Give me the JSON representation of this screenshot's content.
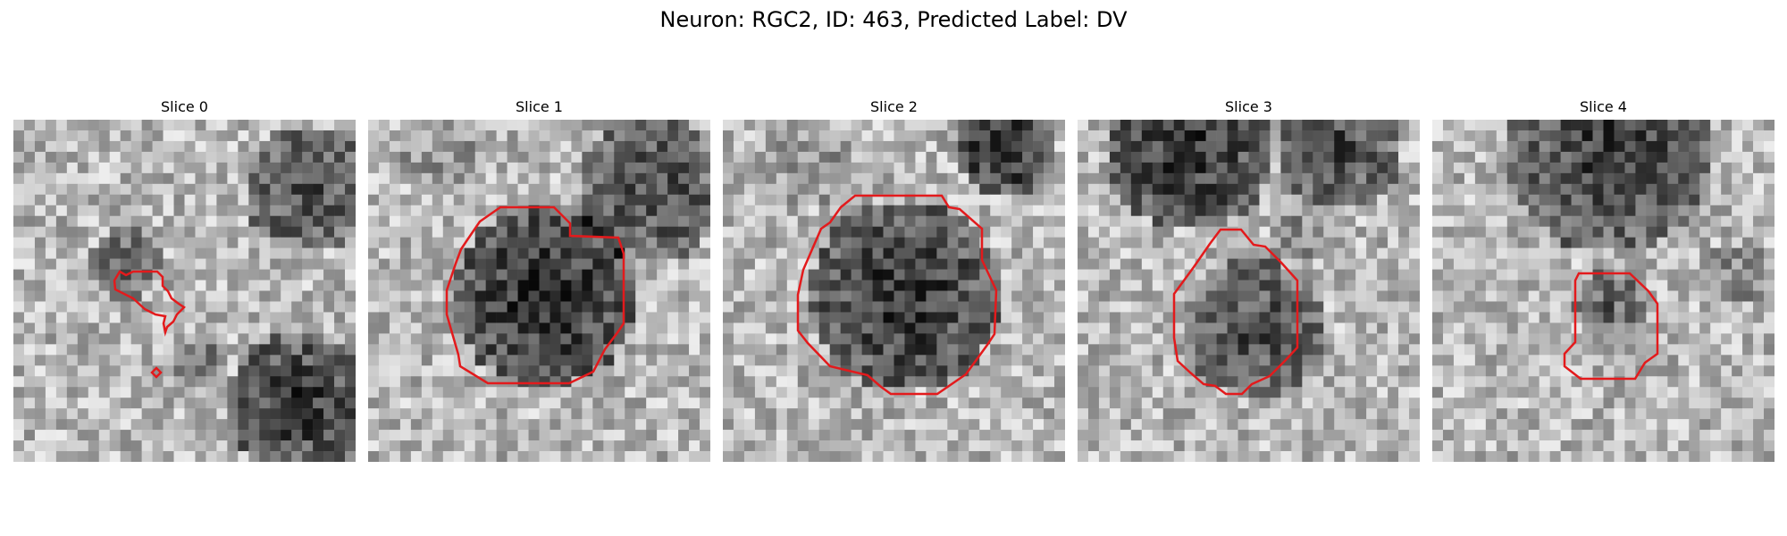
{
  "figure": {
    "title": "Neuron: RGC2, ID: 463, Predicted Label: DV",
    "contour_color": "#e31a1c",
    "colormap": "grayscale"
  },
  "panels": [
    {
      "title": "Slice 0"
    },
    {
      "title": "Slice 1"
    },
    {
      "title": "Slice 2"
    },
    {
      "title": "Slice 3"
    },
    {
      "title": "Slice 4"
    }
  ]
}
